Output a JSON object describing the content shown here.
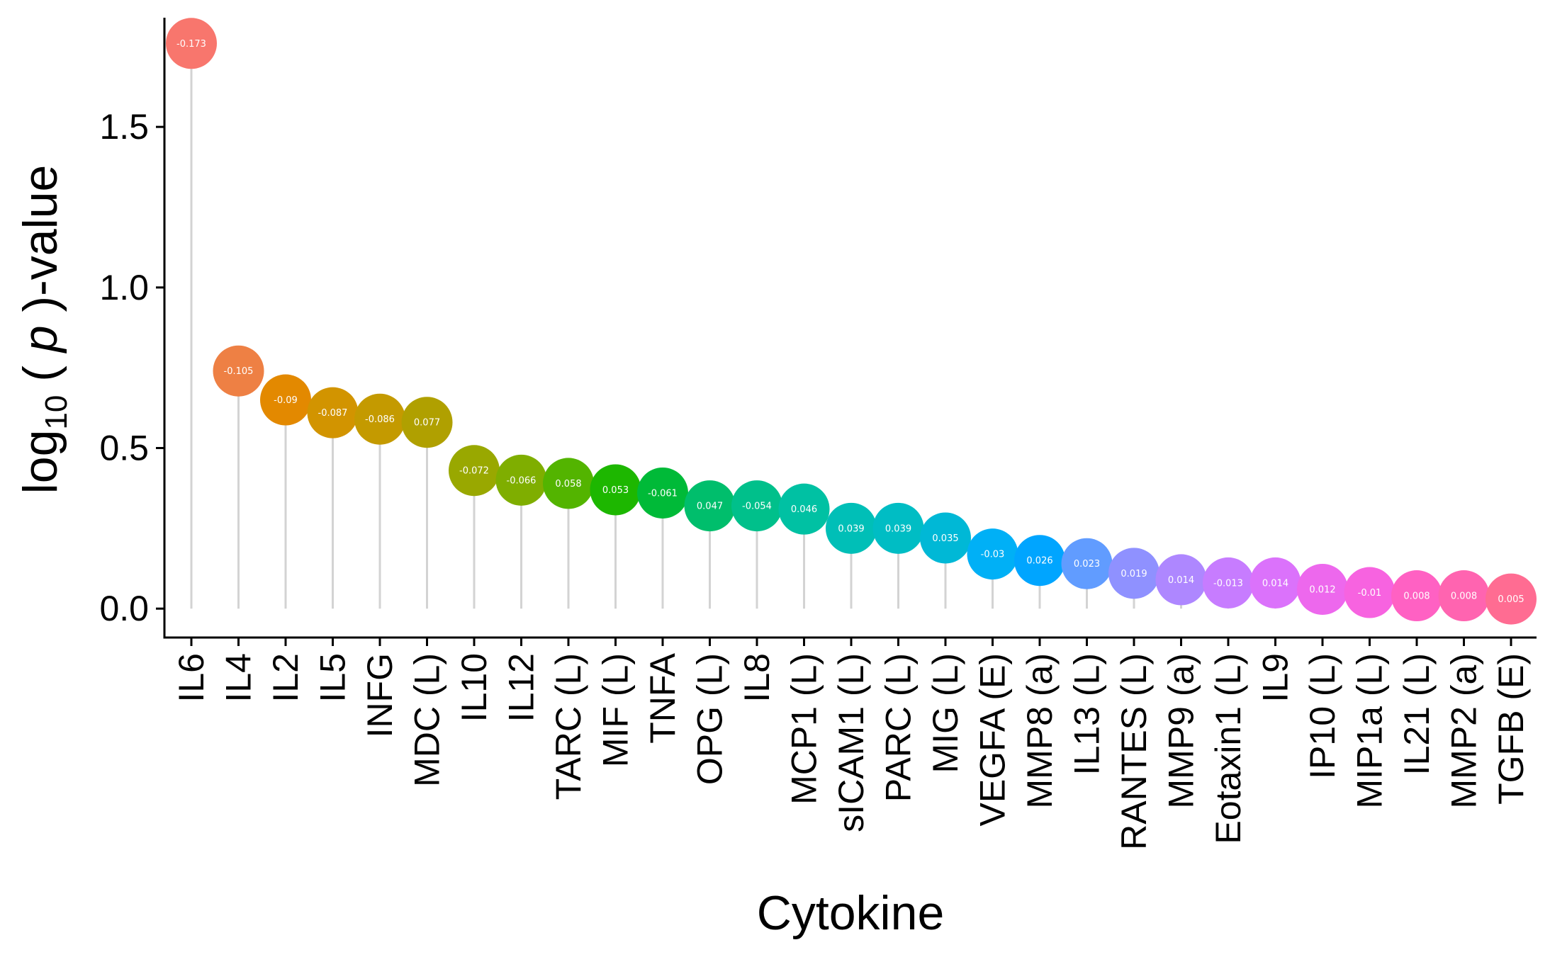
{
  "chart_data": {
    "type": "lollipop",
    "title": "",
    "xlabel": "Cytokine",
    "ylabel": {
      "prefix": "log",
      "subscript": "10",
      "open": " ( ",
      "italic": "p",
      "close": " )-value"
    },
    "ylim": [
      -0.09,
      1.84
    ],
    "yticks": [
      0.0,
      0.5,
      1.0,
      1.5
    ],
    "ytick_labels": [
      "0.0",
      "0.5",
      "1.0",
      "1.5"
    ],
    "grid": false,
    "legend": "none",
    "stem_color": "#d3d3d3",
    "categories": [
      "IL6",
      "IL4",
      "IL2",
      "IL5",
      "INFG",
      "MDC (L)",
      "IL10",
      "IL12",
      "TARC (L)",
      "MIF (L)",
      "TNFA",
      "OPG (L)",
      "IL8",
      "MCP1 (L)",
      "sICAM1 (L)",
      "PARC (L)",
      "MIG (L)",
      "VEGFA (E)",
      "MMP8 (a)",
      "IL13 (L)",
      "RANTES (L)",
      "MMP9 (a)",
      "Eotaxin1 (L)",
      "IL9",
      "IP10 (L)",
      "MIP1a (L)",
      "IL21 (L)",
      "MMP2 (a)",
      "TGFB (E)"
    ],
    "values": [
      1.76,
      0.74,
      0.65,
      0.61,
      0.59,
      0.58,
      0.43,
      0.4,
      0.39,
      0.37,
      0.36,
      0.32,
      0.32,
      0.31,
      0.25,
      0.25,
      0.22,
      0.17,
      0.15,
      0.14,
      0.11,
      0.09,
      0.08,
      0.08,
      0.06,
      0.05,
      0.04,
      0.04,
      0.03
    ],
    "point_labels": [
      "-0.173",
      "-0.105",
      "-0.09",
      "-0.087",
      "-0.086",
      "0.077",
      "-0.072",
      "-0.066",
      "0.058",
      "0.053",
      "-0.061",
      "0.047",
      "-0.054",
      "0.046",
      "0.039",
      "0.039",
      "0.035",
      "-0.03",
      "0.026",
      "0.023",
      "0.019",
      "0.014",
      "-0.013",
      "0.014",
      "0.012",
      "-0.01",
      "0.008",
      "0.008",
      "0.005"
    ],
    "colors": [
      "#F8766D",
      "#EE8044",
      "#E38900",
      "#D29400",
      "#C49A00",
      "#B0A000",
      "#99A800",
      "#7FAE00",
      "#53B400",
      "#1DB700",
      "#00BA38",
      "#00BE6C",
      "#00C08B",
      "#00C1A3",
      "#00BFB7",
      "#00BDC4",
      "#00B8D6",
      "#00B0F6",
      "#00A5FF",
      "#619CFF",
      "#8F91FF",
      "#AE87FF",
      "#C77CFF",
      "#DB72FB",
      "#ED68ED",
      "#F763E0",
      "#FF61C3",
      "#FF64B0",
      "#FF6C92"
    ]
  }
}
